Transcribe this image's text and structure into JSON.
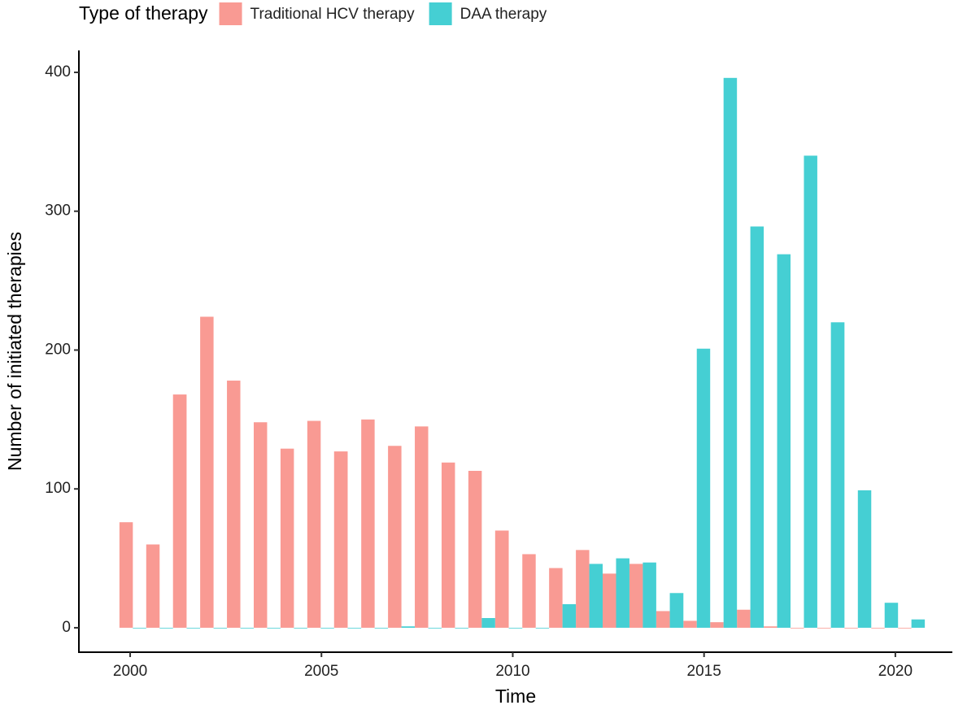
{
  "chart_data": {
    "type": "histogram",
    "x_label": "Time",
    "y_label": "Number of initiated therapies",
    "legend_title": "Type of therapy",
    "legend_position": "top",
    "bins": [
      1999.72,
      2000.42,
      2001.12,
      2001.83,
      2002.53,
      2003.23,
      2003.93,
      2004.63,
      2005.33,
      2006.04,
      2006.74,
      2007.44,
      2008.14,
      2008.84,
      2009.54,
      2010.25,
      2010.95,
      2011.65,
      2012.35,
      2013.05,
      2013.75,
      2014.46,
      2015.16,
      2015.86,
      2016.56,
      2017.26,
      2017.96,
      2018.67,
      2019.37,
      2020.07,
      2020.77
    ],
    "series": [
      {
        "name": "Traditional HCV therapy",
        "color": "#F99A93",
        "values": [
          76,
          60,
          168,
          224,
          178,
          148,
          129,
          149,
          127,
          150,
          131,
          145,
          119,
          113,
          70,
          53,
          43,
          56,
          39,
          46,
          12,
          5,
          4,
          13,
          1,
          0,
          0,
          0,
          0,
          0
        ]
      },
      {
        "name": "DAA therapy",
        "color": "#45CFD3",
        "values": [
          0,
          0,
          0,
          0,
          0,
          0,
          0,
          0,
          0,
          0,
          1,
          0,
          0,
          7,
          0,
          0,
          17,
          46,
          50,
          47,
          25,
          201,
          396,
          289,
          269,
          340,
          220,
          99,
          18,
          6
        ]
      }
    ],
    "xlim": [
      1998.66,
      2021.49
    ],
    "xticks": [
      2000,
      2005,
      2010,
      2015,
      2020
    ],
    "ylim": [
      -17.6,
      415.8
    ],
    "yticks": [
      0,
      100,
      200,
      300,
      400
    ],
    "grid": false
  }
}
